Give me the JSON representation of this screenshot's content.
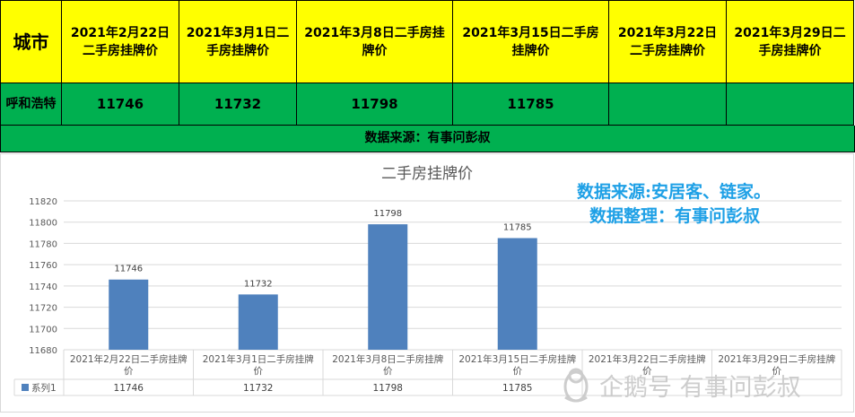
{
  "header": {
    "city_label": "城市",
    "columns": [
      "2021年2月22日二手房挂牌价",
      "2021年3月1日二手房挂牌价",
      "2021年3月8日二手房挂牌价",
      "2021年3月15日二手房挂牌价",
      "2021年3月22日二手房挂牌价",
      "2021年3月29日二手房挂牌价"
    ]
  },
  "row": {
    "city": "呼和浩特",
    "values": [
      "11746",
      "11732",
      "11798",
      "11785",
      "",
      ""
    ]
  },
  "source_line": "数据来源：有事问彭叔",
  "notes": {
    "line1": "数据来源:安居客、链家。",
    "line2": "数据整理：有事问彭叔"
  },
  "watermark": {
    "text": "企鹅号 有事问彭叔",
    "icon": "penguin-icon"
  },
  "colors": {
    "header_bg": "#ffff00",
    "row_bg": "#00b050",
    "bar": "#4f81bd",
    "note_text": "#1ea0e6"
  },
  "chart_data": {
    "type": "bar",
    "title": "二手房挂牌价",
    "categories": [
      "2021年2月22日二手房挂牌价",
      "2021年3月1日二手房挂牌价",
      "2021年3月8日二手房挂牌价",
      "2021年3月15日二手房挂牌价",
      "2021年3月22日二手房挂牌价",
      "2021年3月29日二手房挂牌价"
    ],
    "series": [
      {
        "name": "系列1",
        "values": [
          11746,
          11732,
          11798,
          11785,
          null,
          null
        ]
      }
    ],
    "ylim": [
      11680,
      11820
    ],
    "yticks": [
      11680,
      11700,
      11720,
      11740,
      11760,
      11780,
      11800,
      11820
    ],
    "grid": true,
    "data_table": true
  }
}
